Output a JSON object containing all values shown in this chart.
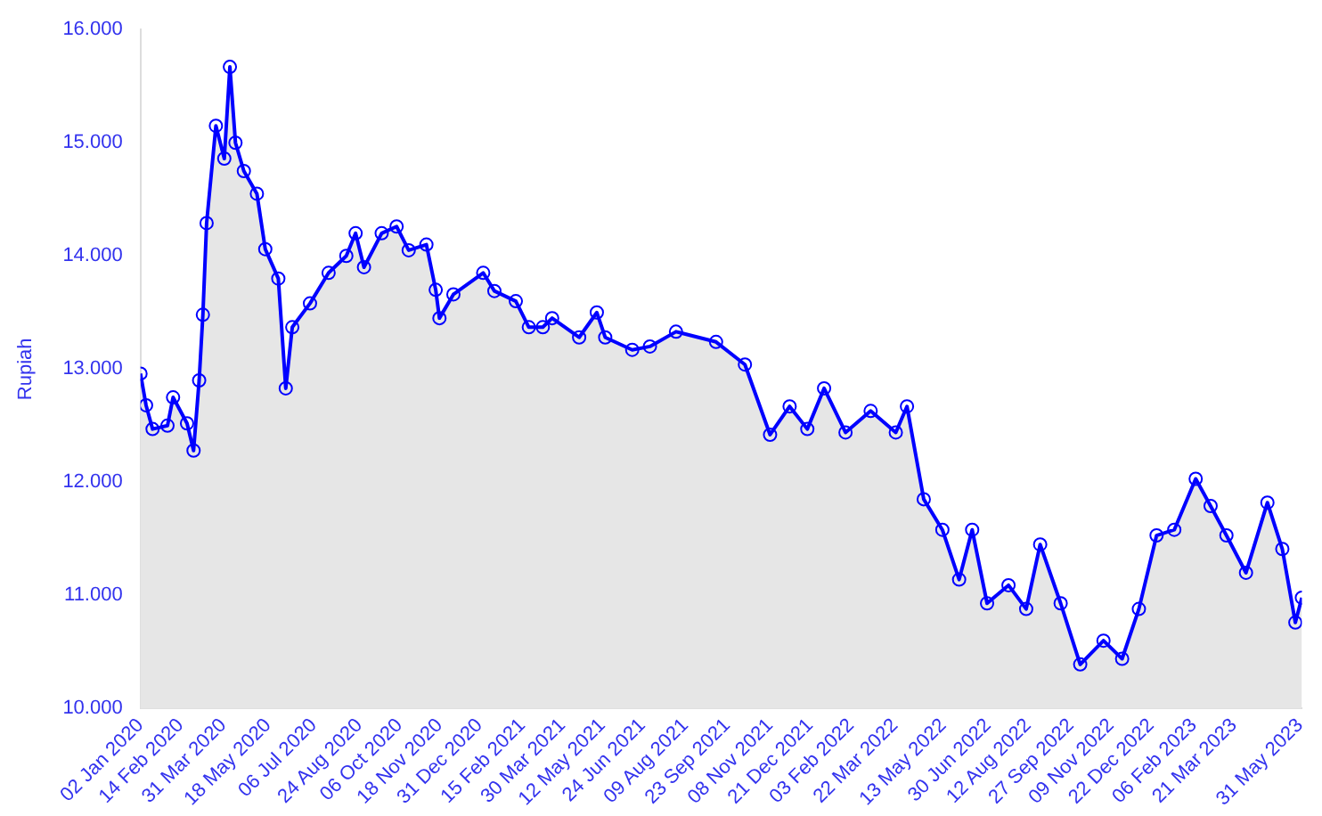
{
  "chart_data": {
    "type": "area",
    "ylabel": "Rupiah",
    "marker": "circle",
    "grid": false,
    "legend": false,
    "x": [
      "2020-01-02",
      "2020-01-08",
      "2020-01-15",
      "2020-01-31",
      "2020-02-06",
      "2020-02-21",
      "2020-02-28",
      "2020-03-05",
      "2020-03-09",
      "2020-03-13",
      "2020-03-23",
      "2020-04-01",
      "2020-04-07",
      "2020-04-13",
      "2020-04-22",
      "2020-05-06",
      "2020-05-15",
      "2020-05-29",
      "2020-06-06",
      "2020-06-13",
      "2020-07-02",
      "2020-07-22",
      "2020-08-10",
      "2020-08-20",
      "2020-08-29",
      "2020-09-17",
      "2020-10-03",
      "2020-10-16",
      "2020-11-04",
      "2020-11-14",
      "2020-11-18",
      "2020-12-03",
      "2021-01-04",
      "2021-01-16",
      "2021-02-08",
      "2021-02-22",
      "2021-03-09",
      "2021-03-19",
      "2021-04-17",
      "2021-05-06",
      "2021-05-15",
      "2021-06-13",
      "2021-07-02",
      "2021-07-30",
      "2021-09-11",
      "2021-10-12",
      "2021-11-08",
      "2021-11-29",
      "2021-12-18",
      "2022-01-05",
      "2022-01-28",
      "2022-02-24",
      "2022-03-23",
      "2022-04-04",
      "2022-04-22",
      "2022-05-12",
      "2022-05-30",
      "2022-06-13",
      "2022-06-29",
      "2022-07-22",
      "2022-08-10",
      "2022-08-25",
      "2022-09-16",
      "2022-10-07",
      "2022-11-01",
      "2022-11-21",
      "2022-12-09",
      "2022-12-28",
      "2023-01-16",
      "2023-02-08",
      "2023-02-24",
      "2023-03-13",
      "2023-04-03",
      "2023-04-26",
      "2023-05-12",
      "2023-05-26",
      "2023-06-02"
    ],
    "series": [
      {
        "color": "#0000ff",
        "values": [
          12960,
          12680,
          12470,
          12500,
          12750,
          12520,
          12280,
          12900,
          13480,
          14290,
          15150,
          14860,
          15670,
          15000,
          14750,
          14550,
          14060,
          13800,
          12830,
          13370,
          13580,
          13850,
          14000,
          14200,
          13900,
          14200,
          14260,
          14050,
          14100,
          13700,
          13450,
          13660,
          13850,
          13690,
          13600,
          13370,
          13370,
          13450,
          13280,
          13500,
          13280,
          13170,
          13200,
          13330,
          13240,
          13040,
          12420,
          12670,
          12470,
          12830,
          12440,
          12630,
          12440,
          12670,
          11850,
          11580,
          11140,
          11580,
          10930,
          11090,
          10880,
          11450,
          10930,
          10390,
          10600,
          10440,
          10880,
          11530,
          11580,
          12030,
          11790,
          11530,
          11200,
          11820,
          11410,
          10760,
          10980
        ]
      }
    ],
    "xlim": [
      "2020-01-02",
      "2023-06-02"
    ],
    "xticks": [
      {
        "value": "2020-01-02",
        "label": "02 Jan 2020"
      },
      {
        "value": "2020-02-14",
        "label": "14 Feb 2020"
      },
      {
        "value": "2020-03-31",
        "label": "31 Mar 2020"
      },
      {
        "value": "2020-05-18",
        "label": "18 May 2020"
      },
      {
        "value": "2020-07-06",
        "label": "06 Jul 2020"
      },
      {
        "value": "2020-08-24",
        "label": "24 Aug 2020"
      },
      {
        "value": "2020-10-06",
        "label": "06 Oct 2020"
      },
      {
        "value": "2020-11-18",
        "label": "18 Nov 2020"
      },
      {
        "value": "2020-12-31",
        "label": "31 Dec 2020"
      },
      {
        "value": "2021-02-15",
        "label": "15 Feb 2021"
      },
      {
        "value": "2021-03-30",
        "label": "30 Mar 2021"
      },
      {
        "value": "2021-05-12",
        "label": "12 May 2021"
      },
      {
        "value": "2021-06-24",
        "label": "24 Jun 2021"
      },
      {
        "value": "2021-08-09",
        "label": "09 Aug 2021"
      },
      {
        "value": "2021-09-23",
        "label": "23 Sep 2021"
      },
      {
        "value": "2021-11-08",
        "label": "08 Nov 2021"
      },
      {
        "value": "2021-12-21",
        "label": "21 Dec 2021"
      },
      {
        "value": "2022-02-03",
        "label": "03 Feb 2022"
      },
      {
        "value": "2022-03-22",
        "label": "22 Mar 2022"
      },
      {
        "value": "2022-05-13",
        "label": "13 May 2022"
      },
      {
        "value": "2022-06-30",
        "label": "30 Jun 2022"
      },
      {
        "value": "2022-08-12",
        "label": "12 Aug 2022"
      },
      {
        "value": "2022-09-27",
        "label": "27 Sep 2022"
      },
      {
        "value": "2022-11-09",
        "label": "09 Nov 2022"
      },
      {
        "value": "2022-12-22",
        "label": "22 Dec 2022"
      },
      {
        "value": "2023-02-06",
        "label": "06 Feb 2023"
      },
      {
        "value": "2023-03-21",
        "label": "21 Mar 2023"
      },
      {
        "value": "2023-05-31",
        "label": "31 May 2023"
      }
    ],
    "ylim": [
      10000,
      16000
    ],
    "yticks": [
      {
        "value": 10000,
        "label": "10.000"
      },
      {
        "value": 11000,
        "label": "11.000"
      },
      {
        "value": 12000,
        "label": "12.000"
      },
      {
        "value": 13000,
        "label": "13.000"
      },
      {
        "value": 14000,
        "label": "14.000"
      },
      {
        "value": 15000,
        "label": "15.000"
      },
      {
        "value": 16000,
        "label": "16.000"
      }
    ]
  }
}
